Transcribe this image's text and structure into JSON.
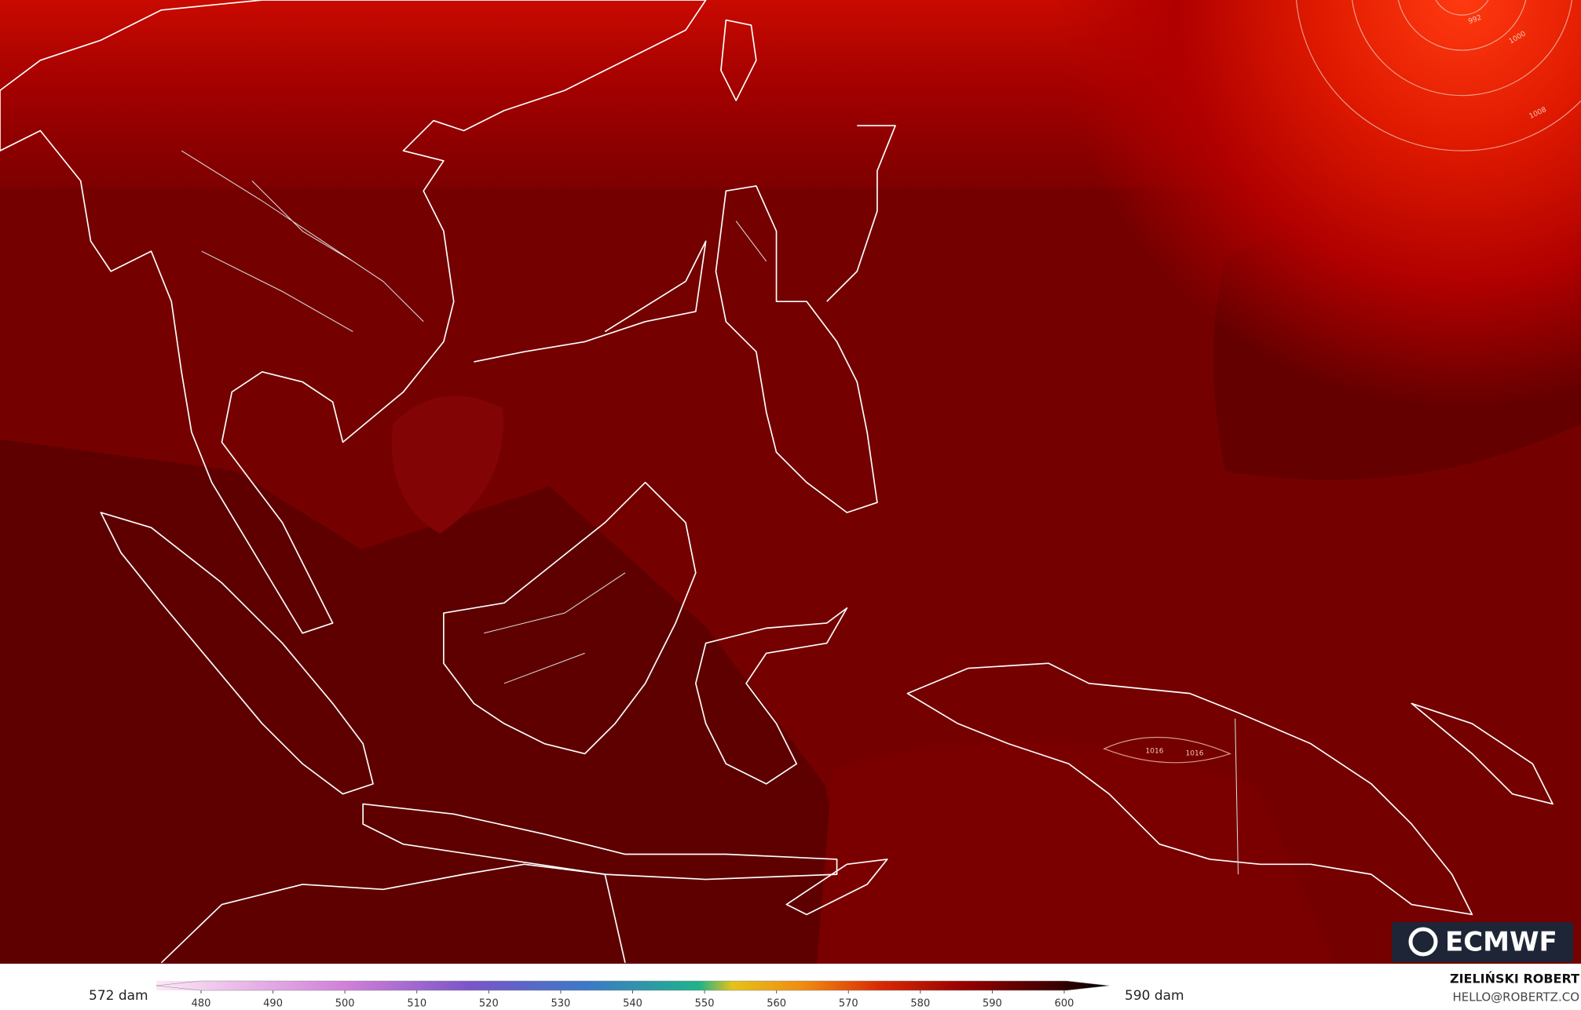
{
  "map": {
    "pressure_labels": [
      "992",
      "1000",
      "1008",
      "1016",
      "1016"
    ],
    "logo": "ECMWF"
  },
  "colorbar": {
    "min_label": "572 dam",
    "max_label": "590 dam",
    "ticks": [
      480,
      490,
      500,
      510,
      520,
      530,
      540,
      550,
      560,
      570,
      580,
      590,
      600
    ]
  },
  "credits": {
    "author": "ZIELIŃSKI ROBERT",
    "contact": "HELLO@ROBERTZ.CO"
  }
}
